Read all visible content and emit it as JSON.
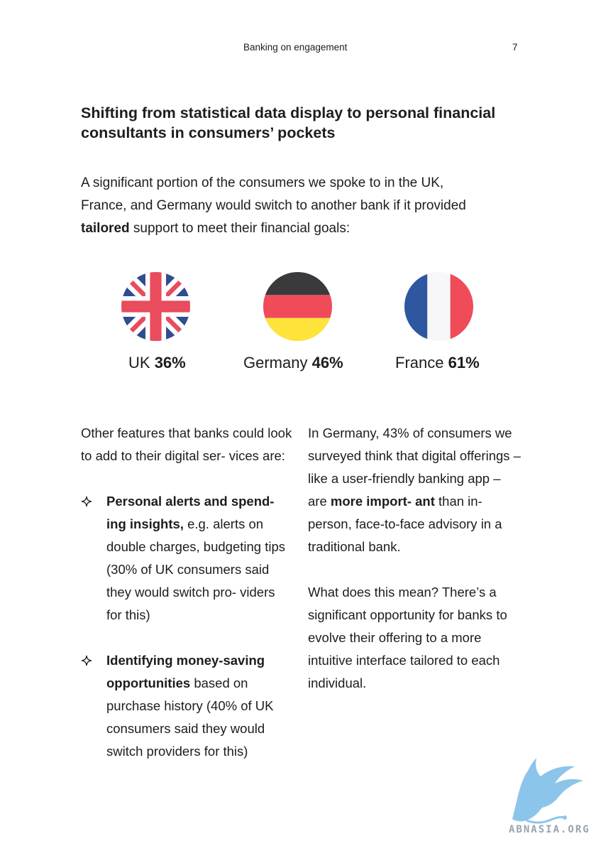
{
  "header": {
    "title": "Banking on engagement",
    "page_number": "7"
  },
  "heading": "Shifting from statistical data display to personal financial consultants in consumers’ pockets",
  "intro": {
    "line1": "A significant portion of the consumers we spoke to in the UK,",
    "line2": "France, and Germany would switch to another bank if it provided",
    "bold": "tailored",
    "line3_rest": " support to meet their financial goals:"
  },
  "stats": [
    {
      "country": "UK",
      "value": "36%",
      "flag": "uk-flag-icon"
    },
    {
      "country": "Germany",
      "value": "46%",
      "flag": "germany-flag-icon"
    },
    {
      "country": "France",
      "value": "61%",
      "flag": "france-flag-icon"
    }
  ],
  "left_column": {
    "intro": "Other features that banks could look to add to their digital ser- vices are:",
    "bullets": [
      {
        "bold": "Personal alerts and spend- ing insights,",
        "text": " e.g. alerts on double charges, budgeting tips (30% of UK consumers said they would switch pro- viders for this)"
      },
      {
        "bold": "Identifying money-saving opportunities",
        "text": " based on purchase history (40% of UK consumers said they would switch providers for this)"
      }
    ]
  },
  "right_column": {
    "p1_start": "In Germany, 43% of consumers we surveyed think that digital offerings – like a user-friendly banking app – are ",
    "p1_bold": "more import- ant",
    "p1_end": " than in-person, face-to-face advisory in a traditional bank.",
    "p2": "What does this mean? There’s a significant opportunity for banks to evolve their offering to a more intuitive interface tailored to each individual."
  },
  "watermark": {
    "text": "ABNASIA.ORG",
    "icon": "griffin-logo-icon"
  },
  "colors": {
    "text": "#1d1d1f",
    "uk_blue": "#2f4d8f",
    "uk_red": "#e94c5c",
    "de_black": "#3a3a3c",
    "de_red": "#ef4b59",
    "de_gold": "#fde33a",
    "fr_blue": "#2e57a0",
    "fr_red": "#ef4b59",
    "watermark": "#8cc5ea"
  }
}
